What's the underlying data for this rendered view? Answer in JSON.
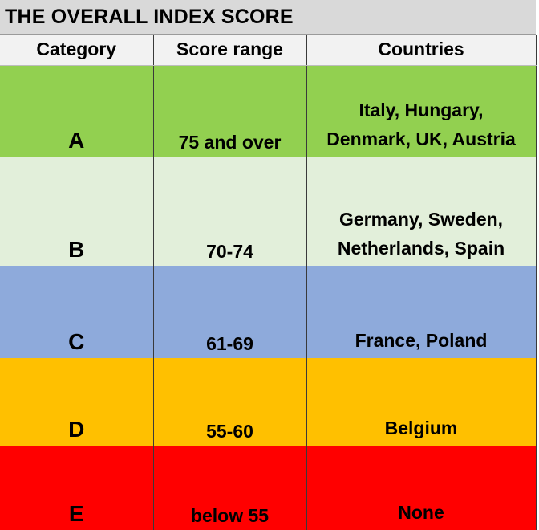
{
  "title": "THE OVERALL INDEX SCORE",
  "headers": {
    "category": "Category",
    "score_range": "Score range",
    "countries": "Countries"
  },
  "rows": [
    {
      "category": "A",
      "score_range": "75 and over",
      "countries_line1": "Italy, Hungary,",
      "countries_line2": "Denmark, UK, Austria",
      "color": "#92d050"
    },
    {
      "category": "B",
      "score_range": "70-74",
      "countries_line1": "Germany, Sweden,",
      "countries_line2": "Netherlands, Spain",
      "color": "#e2efda"
    },
    {
      "category": "C",
      "score_range": "61-69",
      "countries_line1": "France, Poland",
      "color": "#8eaadb"
    },
    {
      "category": "D",
      "score_range": "55-60",
      "countries_line1": "Belgium",
      "color": "#ffc000"
    },
    {
      "category": "E",
      "score_range": "below 55",
      "countries_line1": "None",
      "color": "#ff0000"
    }
  ]
}
